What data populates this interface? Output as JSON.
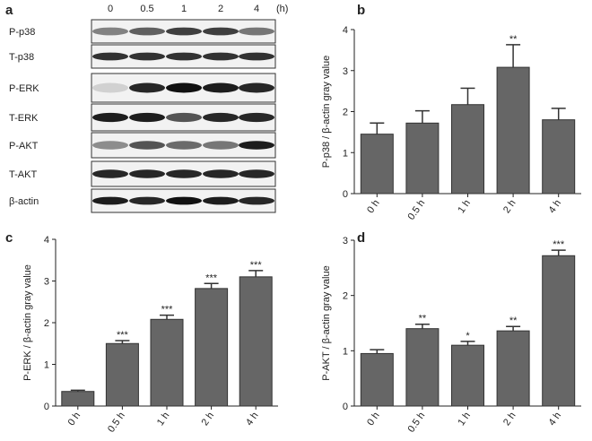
{
  "panel_labels": [
    "a",
    "b",
    "c",
    "d"
  ],
  "blot": {
    "lanes": [
      "0",
      "0.5",
      "1",
      "2",
      "4"
    ],
    "unit": "(h)",
    "rows": [
      "P-p38",
      "T-p38",
      "P-ERK",
      "T-ERK",
      "P-AKT",
      "T-AKT",
      "β-actin"
    ]
  },
  "chart_data": [
    {
      "type": "bar",
      "ylabel": "P-p38 / β-actin gray value",
      "categories": [
        "0 h",
        "0.5 h",
        "1 h",
        "2 h",
        "4 h"
      ],
      "values": [
        1.45,
        1.72,
        2.17,
        3.08,
        1.8
      ],
      "errors": [
        0.27,
        0.3,
        0.4,
        0.55,
        0.28
      ],
      "annotations": [
        null,
        null,
        null,
        "**",
        null
      ],
      "color": "#666666",
      "ylim": [
        0,
        4
      ],
      "yticks": [
        0,
        1,
        2,
        3,
        4
      ]
    },
    {
      "type": "bar",
      "ylabel": "P-ERK / β-actin gray value",
      "categories": [
        "0 h",
        "0.5 h",
        "1 h",
        "2 h",
        "4 h"
      ],
      "values": [
        0.35,
        1.5,
        2.08,
        2.82,
        3.1
      ],
      "errors": [
        0.03,
        0.07,
        0.1,
        0.12,
        0.15
      ],
      "annotations": [
        null,
        "***",
        "***",
        "***",
        "***"
      ],
      "color": "#666666",
      "ylim": [
        0,
        4
      ],
      "yticks": [
        0,
        1,
        2,
        3,
        4
      ]
    },
    {
      "type": "bar",
      "ylabel": "P-AKT / β-actin gray value",
      "categories": [
        "0 h",
        "0.5 h",
        "1 h",
        "2 h",
        "4 h"
      ],
      "values": [
        0.95,
        1.4,
        1.1,
        1.36,
        2.72
      ],
      "errors": [
        0.07,
        0.08,
        0.07,
        0.08,
        0.1
      ],
      "annotations": [
        null,
        "**",
        "*",
        "**",
        "***"
      ],
      "color": "#666666",
      "ylim": [
        0,
        3
      ],
      "yticks": [
        0,
        1,
        2,
        3
      ]
    }
  ]
}
